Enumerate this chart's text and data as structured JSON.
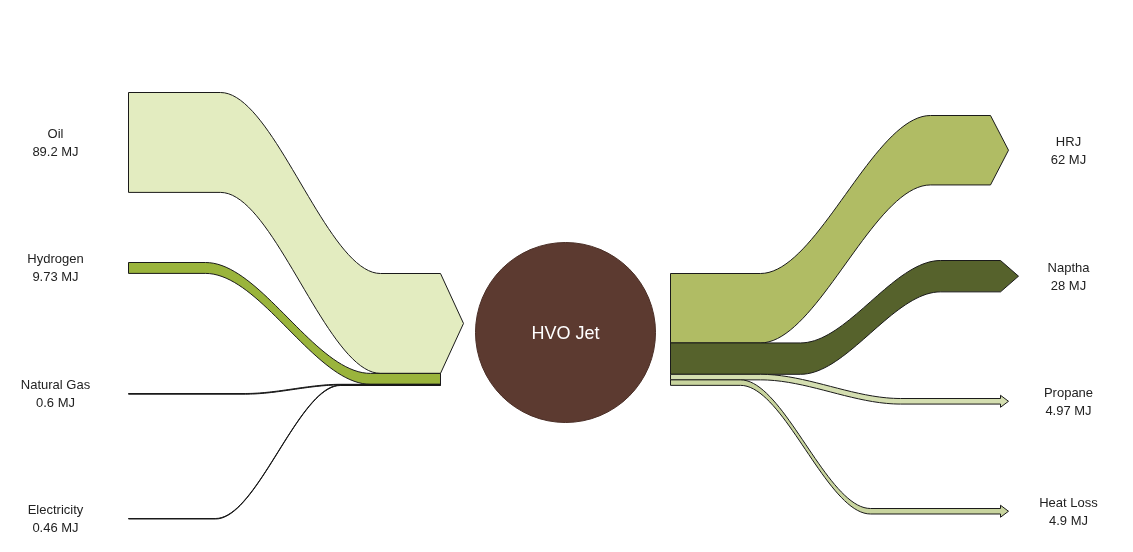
{
  "chart_data": {
    "type": "other",
    "categories": [
      "Oil",
      "Hydrogen",
      "Natural Gas",
      "Electricity",
      "HRJ",
      "Naptha",
      "Propane",
      "Heat Loss"
    ],
    "series": [
      {
        "values": [
          89.2,
          9.73,
          0.6,
          0.46,
          null,
          null,
          null,
          null
        ],
        "colors": [
          "#e3ecc0",
          "#9ab43c",
          "#1a1a1a",
          "#1a1a1a",
          null,
          null,
          null,
          null
        ],
        "value_labels": [
          "89.2 MJ",
          "9.73 MJ",
          "0.6 MJ",
          "0.46 MJ",
          null,
          null,
          null,
          null
        ]
      },
      {
        "values": [
          null,
          null,
          null,
          null,
          62,
          28,
          4.97,
          4.9
        ],
        "colors": [
          null,
          null,
          null,
          null,
          "#b0bc64",
          "#56622c",
          "#d4deb0",
          "#c8d49e"
        ],
        "value_labels": [
          null,
          null,
          null,
          null,
          "62 MJ",
          "28 MJ",
          "4.97 MJ",
          "4.9 MJ"
        ]
      }
    ],
    "annotations": [
      "HVO Jet"
    ]
  }
}
